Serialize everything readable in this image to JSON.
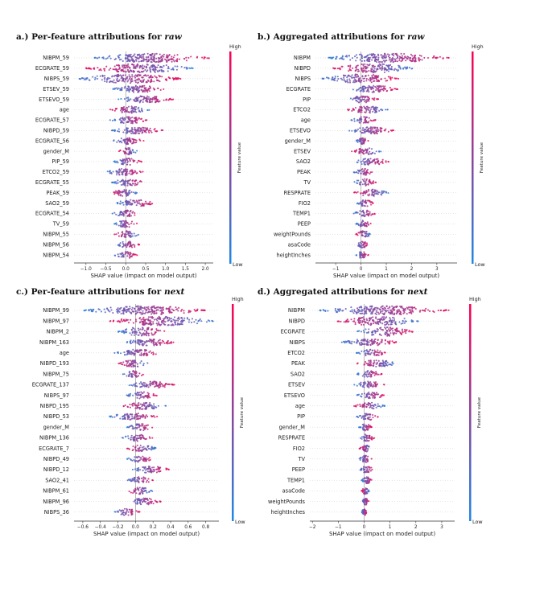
{
  "colors": {
    "low": "#1e88e5",
    "high": "#ff0052",
    "zero_line": "#9e9e9e"
  },
  "colorbar": {
    "high": "High",
    "low": "Low",
    "title": "Feature value"
  },
  "xlabel": "SHAP value (impact on model output)",
  "chart_data": [
    {
      "type": "scatter",
      "panel": "a",
      "title_prefix": "a.) Per-feature attributions for ",
      "title_emph": "raw",
      "xlabel": "SHAP value (impact on model output)",
      "xlim": [
        -1.3,
        2.2
      ],
      "xticks": [
        -1.0,
        -0.5,
        0.0,
        0.5,
        1.0,
        1.5,
        2.0
      ],
      "xtick_labels": [
        "−1.0",
        "−0.5",
        "0.0",
        "0.5",
        "1.0",
        "1.5",
        "2.0"
      ],
      "features": [
        "NIBPM_59",
        "ECGRATE_59",
        "NIBPS_59",
        "ETSEV_59",
        "ETSEVO_59",
        "age",
        "ECGRATE_57",
        "NIBPD_59",
        "ECGRATE_56",
        "gender_M",
        "PIP_59",
        "ETCO2_59",
        "ECGRATE_55",
        "PEAK_59",
        "SAO2_59",
        "ECGRATE_54",
        "TV_59",
        "NIBPM_55",
        "NIBPM_56",
        "NIBPM_54"
      ],
      "ranges": [
        [
          -0.8,
          2.1
        ],
        [
          -1.0,
          1.7
        ],
        [
          -1.2,
          1.4
        ],
        [
          -0.35,
          1.0
        ],
        [
          -0.2,
          1.2
        ],
        [
          -0.4,
          0.6
        ],
        [
          -0.4,
          0.55
        ],
        [
          -0.35,
          0.95
        ],
        [
          -0.4,
          0.45
        ],
        [
          -0.2,
          0.3
        ],
        [
          -0.3,
          0.4
        ],
        [
          -0.5,
          0.45
        ],
        [
          -0.35,
          0.5
        ],
        [
          -0.4,
          0.3
        ],
        [
          -0.3,
          0.75
        ],
        [
          -0.35,
          0.35
        ],
        [
          -0.3,
          0.3
        ],
        [
          -0.3,
          0.35
        ],
        [
          -0.25,
          0.35
        ],
        [
          -0.3,
          0.3
        ]
      ]
    },
    {
      "type": "scatter",
      "panel": "b",
      "title_prefix": "b.) Aggregated attributions for ",
      "title_emph": "raw",
      "xlabel": "SHAP value (impact on model output)",
      "xlim": [
        -1.8,
        3.8
      ],
      "xticks": [
        -1,
        0,
        1,
        2,
        3
      ],
      "xtick_labels": [
        "−1",
        "0",
        "1",
        "2",
        "3"
      ],
      "features": [
        "NIBPM",
        "NIBPD",
        "NIBPS",
        "ECGRATE",
        "PIP",
        "ETCO2",
        "age",
        "ETSEVO",
        "gender_M",
        "ETSEV",
        "SAO2",
        "PEAK",
        "TV",
        "RESPRATE",
        "FIO2",
        "TEMP1",
        "PEEP",
        "weightPounds",
        "asaCode",
        "heightInches"
      ],
      "ranges": [
        [
          -1.3,
          3.5
        ],
        [
          -1.1,
          2.1
        ],
        [
          -1.6,
          1.5
        ],
        [
          -0.5,
          1.5
        ],
        [
          -0.6,
          0.7
        ],
        [
          -0.6,
          1.1
        ],
        [
          -0.4,
          0.6
        ],
        [
          -0.5,
          1.3
        ],
        [
          -0.2,
          0.3
        ],
        [
          -0.4,
          0.8
        ],
        [
          -0.3,
          1.1
        ],
        [
          -0.3,
          0.5
        ],
        [
          -0.3,
          0.6
        ],
        [
          -0.3,
          1.1
        ],
        [
          -0.2,
          0.5
        ],
        [
          -0.3,
          0.6
        ],
        [
          -0.2,
          0.4
        ],
        [
          -0.2,
          0.4
        ],
        [
          -0.2,
          0.3
        ],
        [
          -0.2,
          0.3
        ]
      ]
    },
    {
      "type": "scatter",
      "panel": "c",
      "title_prefix": "c.) Per-feature attributions for ",
      "title_emph": "next",
      "xlabel": "SHAP value (impact on model output)",
      "xlim": [
        -0.7,
        0.95
      ],
      "xticks": [
        -0.6,
        -0.4,
        -0.2,
        0.0,
        0.2,
        0.4,
        0.6,
        0.8
      ],
      "xtick_labels": [
        "−0.6",
        "−0.4",
        "−0.2",
        "0.0",
        "0.2",
        "0.4",
        "0.6",
        "0.8"
      ],
      "features": [
        "NIBPM_99",
        "NIBPM_97",
        "NIBPM_2",
        "NIBPM_163",
        "age",
        "NIBPD_193",
        "NIBPM_75",
        "ECGRATE_137",
        "NIBPS_97",
        "NIBPD_195",
        "NIBPD_53",
        "gender_M",
        "NIBPM_136",
        "ECGRATE_7",
        "NIBPD_49",
        "NIBPD_12",
        "SAO2_41",
        "NIBPM_61",
        "NIBPM_96",
        "NIBPS_36"
      ],
      "ranges": [
        [
          -0.6,
          0.8
        ],
        [
          -0.3,
          0.9
        ],
        [
          -0.2,
          0.35
        ],
        [
          -0.15,
          0.45
        ],
        [
          -0.25,
          0.3
        ],
        [
          -0.2,
          0.15
        ],
        [
          -0.15,
          0.1
        ],
        [
          -0.1,
          0.45
        ],
        [
          -0.1,
          0.25
        ],
        [
          -0.15,
          0.35
        ],
        [
          -0.3,
          0.25
        ],
        [
          -0.1,
          0.2
        ],
        [
          -0.15,
          0.2
        ],
        [
          -0.1,
          0.25
        ],
        [
          -0.1,
          0.2
        ],
        [
          -0.05,
          0.4
        ],
        [
          -0.1,
          0.2
        ],
        [
          -0.1,
          0.2
        ],
        [
          -0.1,
          0.3
        ],
        [
          -0.25,
          0.05
        ]
      ]
    },
    {
      "type": "scatter",
      "panel": "d",
      "title_prefix": "d.) Aggregated attributions for ",
      "title_emph": "next",
      "xlabel": "SHAP value (impact on model output)",
      "xlim": [
        -2.1,
        3.5
      ],
      "xticks": [
        -2,
        -1,
        0,
        1,
        2,
        3
      ],
      "xtick_labels": [
        "−2",
        "−1",
        "0",
        "1",
        "2",
        "3"
      ],
      "features": [
        "NIBPM",
        "NIBPD",
        "ECGRATE",
        "NIBPS",
        "ETCO2",
        "PEAK",
        "SAO2",
        "ETSEV",
        "ETSEVO",
        "age",
        "PIP",
        "gender_M",
        "RESPRATE",
        "FIO2",
        "TV",
        "PEEP",
        "TEMP1",
        "asaCode",
        "weightPounds",
        "heightInches"
      ],
      "ranges": [
        [
          -1.8,
          3.3
        ],
        [
          -1.1,
          2.1
        ],
        [
          -0.3,
          1.9
        ],
        [
          -0.9,
          1.3
        ],
        [
          -0.3,
          0.9
        ],
        [
          -0.3,
          1.3
        ],
        [
          -0.3,
          0.7
        ],
        [
          -0.4,
          0.8
        ],
        [
          -0.3,
          0.8
        ],
        [
          -0.4,
          0.8
        ],
        [
          -0.3,
          0.6
        ],
        [
          -0.2,
          0.3
        ],
        [
          -0.2,
          0.4
        ],
        [
          -0.2,
          0.3
        ],
        [
          -0.2,
          0.3
        ],
        [
          -0.2,
          0.4
        ],
        [
          -0.1,
          0.3
        ],
        [
          -0.1,
          0.2
        ],
        [
          -0.1,
          0.2
        ],
        [
          -0.1,
          0.1
        ]
      ]
    }
  ]
}
